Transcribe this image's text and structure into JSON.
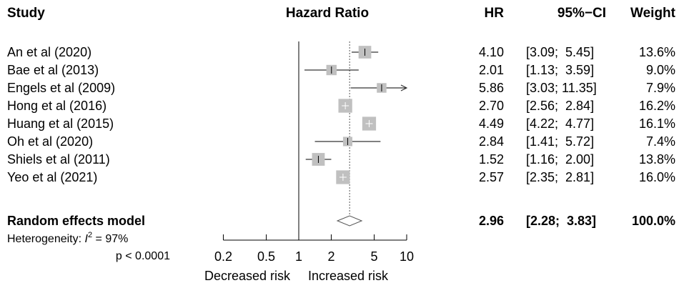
{
  "chart_data": {
    "type": "forest",
    "headers": {
      "study": "Study",
      "plot": "Hazard Ratio",
      "hr": "HR",
      "ci": "95%−CI",
      "weight": "Weight"
    },
    "studies": [
      {
        "label": "An et al (2020)",
        "hr": 4.1,
        "lower": 3.09,
        "upper": 5.45,
        "hr_text": "4.10",
        "ci_text": "[3.09;  5.45]",
        "weight_text": "13.6%",
        "weight": 13.6
      },
      {
        "label": "Bae et al (2013)",
        "hr": 2.01,
        "lower": 1.13,
        "upper": 3.59,
        "hr_text": "2.01",
        "ci_text": "[1.13;  3.59]",
        "weight_text": "9.0%",
        "weight": 9.0
      },
      {
        "label": "Engels et al (2009)",
        "hr": 5.86,
        "lower": 3.03,
        "upper": 11.35,
        "hr_text": "5.86",
        "ci_text": "[3.03; 11.35]",
        "weight_text": "7.9%",
        "weight": 7.9
      },
      {
        "label": "Hong et al (2016)",
        "hr": 2.7,
        "lower": 2.56,
        "upper": 2.84,
        "hr_text": "2.70",
        "ci_text": "[2.56;  2.84]",
        "weight_text": "16.2%",
        "weight": 16.2
      },
      {
        "label": "Huang et al (2015)",
        "hr": 4.49,
        "lower": 4.22,
        "upper": 4.77,
        "hr_text": "4.49",
        "ci_text": "[4.22;  4.77]",
        "weight_text": "16.1%",
        "weight": 16.1
      },
      {
        "label": "Oh et al (2020)",
        "hr": 2.84,
        "lower": 1.41,
        "upper": 5.72,
        "hr_text": "2.84",
        "ci_text": "[1.41;  5.72]",
        "weight_text": "7.4%",
        "weight": 7.4
      },
      {
        "label": "Shiels et al (2011)",
        "hr": 1.52,
        "lower": 1.16,
        "upper": 2.0,
        "hr_text": "1.52",
        "ci_text": "[1.16;  2.00]",
        "weight_text": "13.8%",
        "weight": 13.8
      },
      {
        "label": "Yeo et al (2021)",
        "hr": 2.57,
        "lower": 2.35,
        "upper": 2.81,
        "hr_text": "2.57",
        "ci_text": "[2.35;  2.81]",
        "weight_text": "16.0%",
        "weight": 16.0
      }
    ],
    "summary": {
      "label": "Random effects model",
      "hr": 2.96,
      "lower": 2.28,
      "upper": 3.83,
      "hr_text": "2.96",
      "ci_text": "[2.28;  3.83]",
      "weight_text": "100.0%"
    },
    "heterogeneity_prefix": "Heterogeneity: ",
    "heterogeneity_symbol": "I",
    "heterogeneity_exponent": "2",
    "heterogeneity_value": " = 97%",
    "p_value": "p < 0.0001",
    "x_scale": "log",
    "x_ticks": [
      0.2,
      0.5,
      1,
      2,
      5,
      10
    ],
    "x_tick_labels": [
      "0.2",
      "0.5",
      "1",
      "2",
      "5",
      "10"
    ],
    "xlim": [
      0.2,
      10
    ],
    "reference_line": 1,
    "left_label": "Decreased risk",
    "right_label": "Increased risk",
    "colors": {
      "box": "#c0c0c0",
      "line": "#000000",
      "summary_line": "#555555"
    }
  }
}
